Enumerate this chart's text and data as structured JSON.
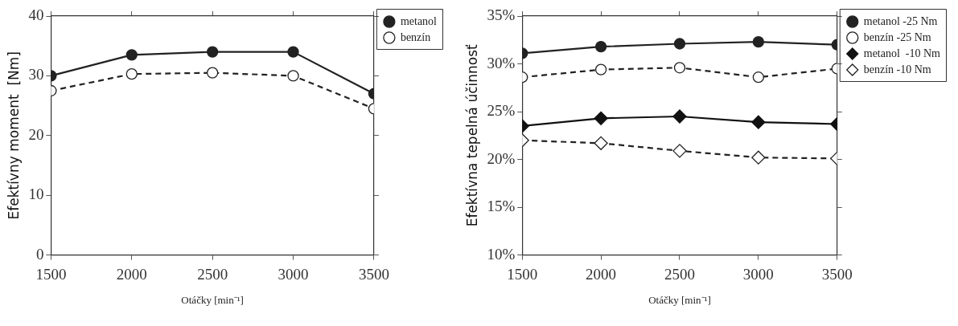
{
  "chart_data": [
    {
      "type": "line",
      "xlabel": "Otáčky [min⁻¹]",
      "ylabel": "Efektívny moment  [Nm]",
      "x": [
        1500,
        2000,
        2500,
        3000,
        3500
      ],
      "xlim": [
        1500,
        3500
      ],
      "xticks": [
        1500,
        2000,
        2500,
        3000,
        3500
      ],
      "ylim": [
        0,
        40
      ],
      "yticks": [
        0,
        10,
        20,
        30,
        40
      ],
      "grid": false,
      "legend": "top right",
      "series": [
        {
          "name": "metanol",
          "color": "#222222",
          "marker": "circle",
          "line_style": "solid",
          "values": [
            30,
            33.5,
            34,
            34,
            27
          ]
        },
        {
          "name": "benzín",
          "color": "#222222",
          "marker": "circle",
          "line_style": "dashed",
          "values": [
            27.5,
            30.3,
            30.5,
            30,
            24.5
          ]
        }
      ]
    },
    {
      "type": "line",
      "xlabel": "Otáčky [min⁻¹]",
      "ylabel": "Efektívna tepelná účinnosť",
      "x": [
        1500,
        2000,
        2500,
        3000,
        3500
      ],
      "xlim": [
        1500,
        3500
      ],
      "xticks": [
        1500,
        2000,
        2500,
        3000,
        3500
      ],
      "ylim": [
        10,
        35
      ],
      "yticks": [
        {
          "value": 10,
          "label": "10%"
        },
        {
          "value": 15,
          "label": "15%"
        },
        {
          "value": 20,
          "label": "20%"
        },
        {
          "value": 25,
          "label": "25%"
        },
        {
          "value": 30,
          "label": "30%"
        },
        {
          "value": 35,
          "label": "35%"
        }
      ],
      "grid": false,
      "legend": "top right",
      "series": [
        {
          "name": "metanol -25 Nm",
          "color": "#222222",
          "marker": "circle",
          "line_style": "solid",
          "values": [
            31.1,
            31.8,
            32.1,
            32.3,
            32.0
          ]
        },
        {
          "name": "benzín -25 Nm",
          "color": "#222222",
          "marker": "circle",
          "line_style": "dashed",
          "values": [
            28.6,
            29.4,
            29.6,
            28.6,
            29.5
          ]
        },
        {
          "name": "metanol  -10 Nm",
          "color": "#111111",
          "marker": "diamond",
          "line_style": "solid",
          "values": [
            23.5,
            24.3,
            24.5,
            23.9,
            23.7
          ]
        },
        {
          "name": "benzín -10 Nm",
          "color": "#222222",
          "marker": "diamond",
          "line_style": "dashed",
          "values": [
            22.0,
            21.7,
            20.9,
            20.2,
            20.1
          ]
        }
      ]
    }
  ]
}
